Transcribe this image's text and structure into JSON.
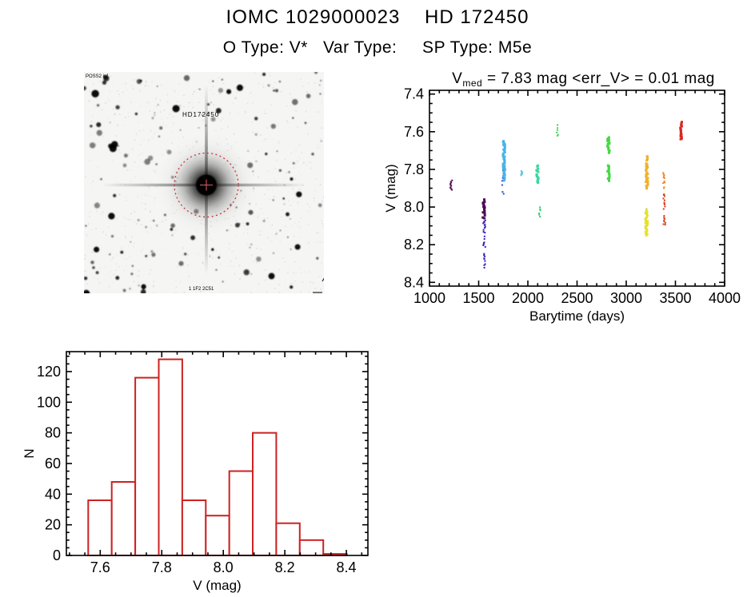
{
  "header": {
    "title": "IOMC 1029000023    HD 172450",
    "subtitle": "O Type: V*   Var Type:     SP Type: M5e"
  },
  "finder": {
    "target_label": "HD172450",
    "survey_label": "POSS2 inf",
    "bottom_label": "1 1F2 2C51",
    "label_color": "#cc2222",
    "circle_color": "#cc3333",
    "crosshair_color": "#d05868",
    "corner_text_color": "#1a1a5e"
  },
  "chart_data": [
    {
      "id": "lightcurve",
      "type": "scatter",
      "title_parts": {
        "base": "V",
        "sub": "med",
        "rest": " = 7.83 mag <err_V> = 0.01 mag"
      },
      "xlabel": "Barytime (days)",
      "ylabel": "V (mag)",
      "xlim": [
        1000,
        4000
      ],
      "ylim": [
        7.38,
        8.42
      ],
      "y_reversed": true,
      "xticks": [
        1000,
        1500,
        2000,
        2500,
        3000,
        3500,
        4000
      ],
      "yticks": [
        7.4,
        7.6,
        7.8,
        8.0,
        8.2,
        8.4
      ],
      "x_minor": 100,
      "y_minor": 0.05,
      "xtick_decimals": 0,
      "ytick_decimals": 1,
      "clusters": [
        {
          "day": 1220,
          "color": "#55104f",
          "segments": [
            [
              7.86,
              7.91
            ]
          ],
          "density": 0.9,
          "size": 2
        },
        {
          "day": 1553,
          "color": "#4a0c55",
          "segments": [
            [
              7.96,
              8.06
            ]
          ],
          "density": 0.95,
          "size": 3
        },
        {
          "day": 1557,
          "color": "#3b1cb8",
          "segments": [
            [
              8.07,
              8.21
            ],
            [
              8.25,
              8.32
            ]
          ],
          "density": 0.7,
          "size": 2
        },
        {
          "day": 1748,
          "color": "#2a4fd0",
          "segments": [
            [
              7.8,
              7.94
            ]
          ],
          "density": 0.5,
          "size": 2
        },
        {
          "day": 1757,
          "color": "#45b4e8",
          "segments": [
            [
              7.65,
              7.86
            ]
          ],
          "density": 1.0,
          "size": 3
        },
        {
          "day": 1940,
          "color": "#48c4e0",
          "segments": [
            [
              7.81,
              7.83
            ]
          ],
          "density": 1.0,
          "size": 2
        },
        {
          "day": 2098,
          "color": "#38d89c",
          "segments": [
            [
              7.78,
              7.87
            ]
          ],
          "density": 0.9,
          "size": 3
        },
        {
          "day": 2122,
          "color": "#34cc70",
          "segments": [
            [
              8.0,
              8.05
            ]
          ],
          "density": 0.7,
          "size": 2
        },
        {
          "day": 2305,
          "color": "#3fd455",
          "segments": [
            [
              7.56,
              7.62
            ]
          ],
          "density": 0.6,
          "size": 2
        },
        {
          "day": 2820,
          "color": "#44d844",
          "segments": [
            [
              7.63,
              7.71
            ],
            [
              7.78,
              7.86
            ]
          ],
          "density": 0.9,
          "size": 3
        },
        {
          "day": 3210,
          "color": "#f0b02c",
          "segments": [
            [
              7.73,
              7.9
            ]
          ],
          "density": 0.9,
          "size": 3
        },
        {
          "day": 3198,
          "color": "#b4d438",
          "segments": [
            [
              7.99,
              8.12
            ]
          ],
          "density": 0.5,
          "size": 2
        },
        {
          "day": 3207,
          "color": "#e8e02c",
          "segments": [
            [
              8.02,
              8.15
            ]
          ],
          "density": 0.9,
          "size": 3
        },
        {
          "day": 3385,
          "color": "#f08828",
          "segments": [
            [
              7.82,
              7.9
            ]
          ],
          "density": 0.8,
          "size": 2
        },
        {
          "day": 3388,
          "color": "#d83c18",
          "segments": [
            [
              7.92,
              8.01
            ],
            [
              8.04,
              8.1
            ]
          ],
          "density": 0.7,
          "size": 2
        },
        {
          "day": 3555,
          "color": "#d82820",
          "segments": [
            [
              7.55,
              7.64
            ]
          ],
          "density": 1.0,
          "size": 3
        }
      ]
    },
    {
      "id": "histogram",
      "type": "bar",
      "xlabel": "V (mag)",
      "ylabel": "N",
      "bin_start": 7.561,
      "bin_width": 0.0764,
      "counts": [
        36,
        48,
        116,
        128,
        36,
        26,
        55,
        80,
        21,
        10,
        1
      ],
      "xlim": [
        7.49,
        8.47
      ],
      "ylim": [
        0,
        133
      ],
      "xticks": [
        7.6,
        7.8,
        8.0,
        8.2,
        8.4
      ],
      "yticks": [
        0,
        20,
        40,
        60,
        80,
        100,
        120
      ],
      "x_minor": 0.05,
      "y_minor": 5,
      "xtick_decimals": 1,
      "ytick_decimals": 0,
      "bar_color": "#cc2222"
    }
  ]
}
